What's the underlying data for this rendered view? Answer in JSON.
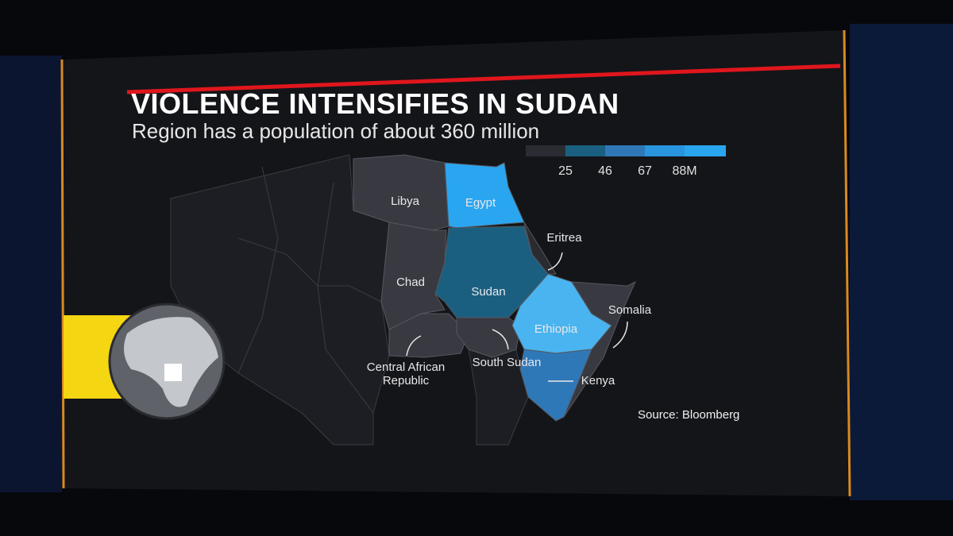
{
  "header": {
    "title": "VIOLENCE INTENSIFIES IN SUDAN",
    "subtitle": "Region has a population of about 360 million"
  },
  "legend": {
    "labels": [
      "25",
      "46",
      "67",
      "88M"
    ]
  },
  "map": {
    "labels": [
      "Libya",
      "Egypt",
      "Eritrea",
      "Chad",
      "Sudan",
      "Somalia",
      "Ethiopia",
      "Central African Republic",
      "South Sudan",
      "Kenya"
    ]
  },
  "source": "Source: Bloomberg"
}
